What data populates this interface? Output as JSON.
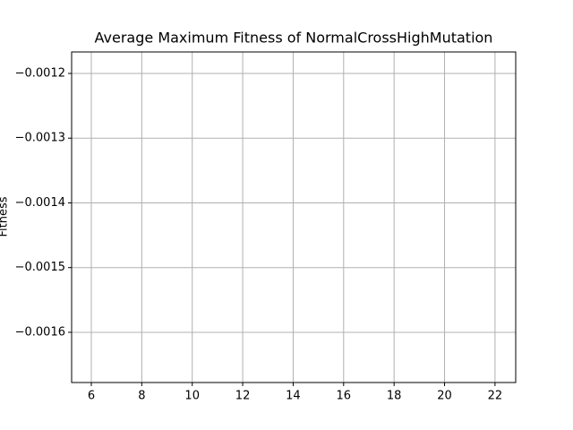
{
  "chart_data": {
    "type": "line",
    "title": "Average Maximum Fitness of NormalCrossHighMutation",
    "ylabel": "Fitness",
    "xlim": [
      5.22,
      22.82
    ],
    "xticks": [
      6,
      8,
      10,
      12,
      14,
      16,
      18,
      20,
      22
    ],
    "ylim": [
      -0.0016776,
      -0.0011668
    ],
    "yticks": [
      {
        "value": -0.0012,
        "label": "−0.0012"
      },
      {
        "value": -0.0013,
        "label": "−0.0013"
      },
      {
        "value": -0.0014,
        "label": "−0.0014"
      },
      {
        "value": -0.0015,
        "label": "−0.0015"
      },
      {
        "value": -0.0016,
        "label": "−0.0016"
      }
    ],
    "grid": true
  }
}
